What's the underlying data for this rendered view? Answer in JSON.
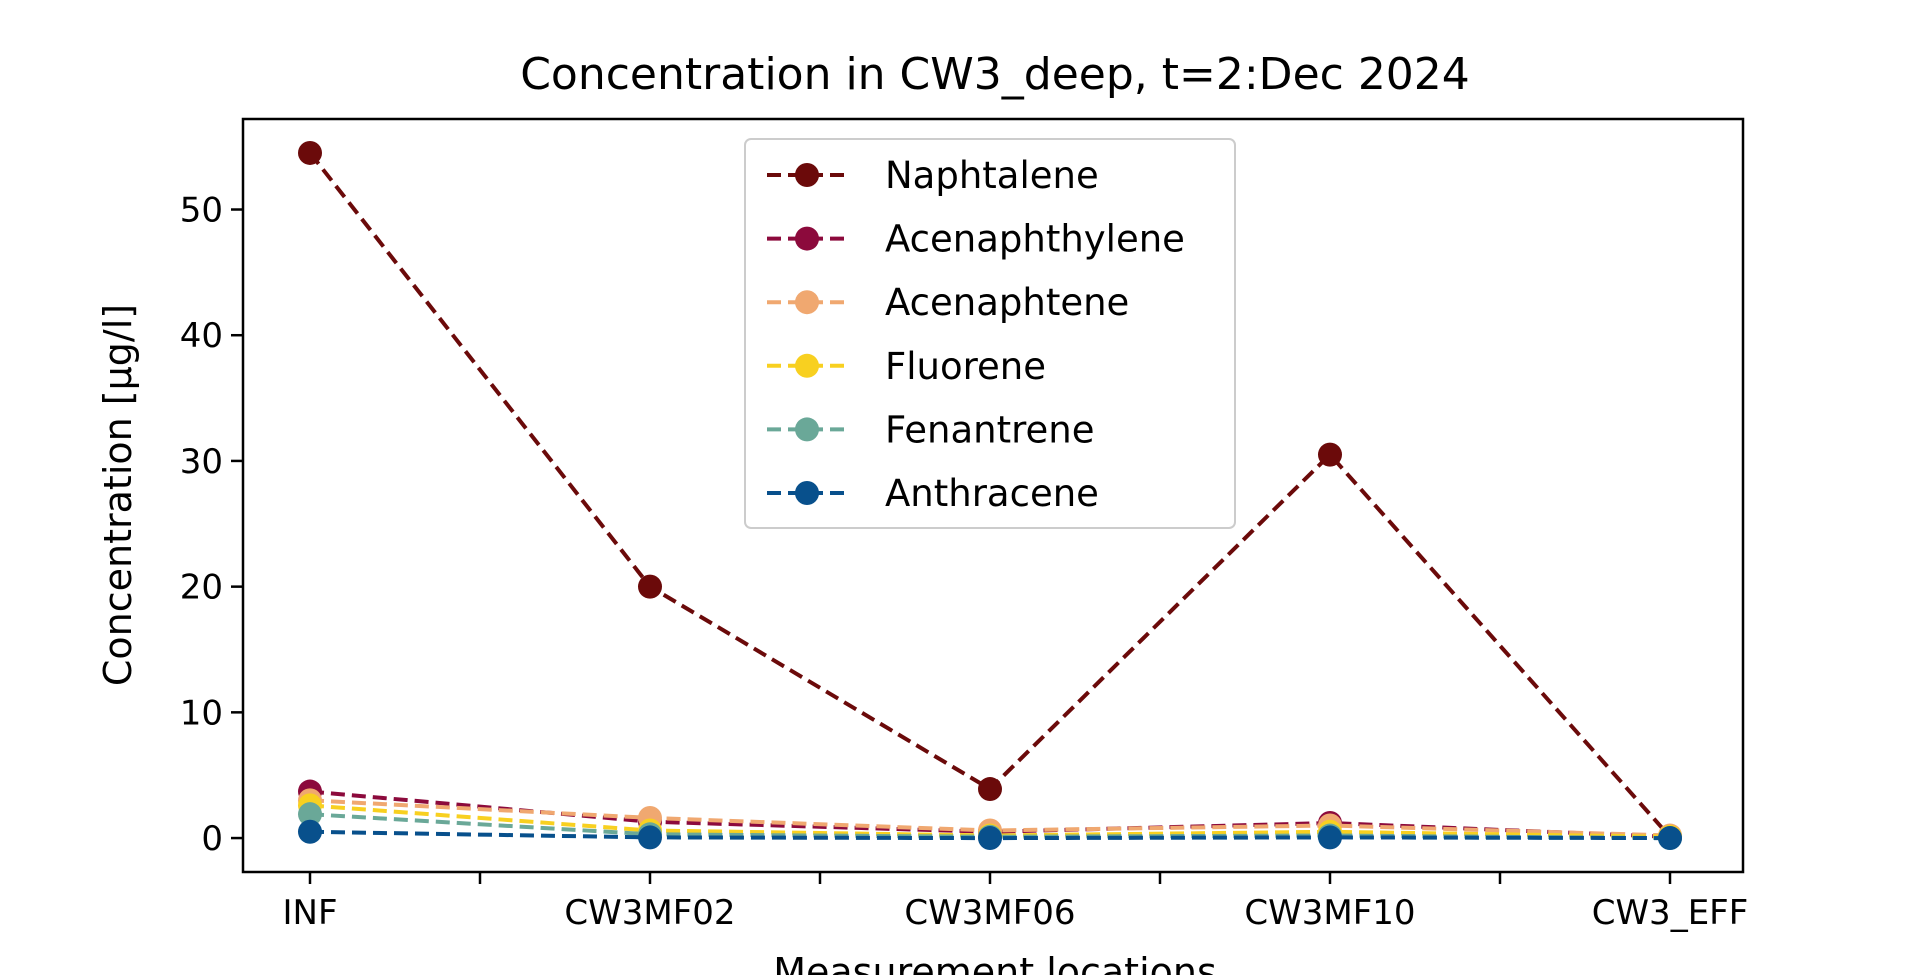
{
  "chart_data": {
    "type": "line",
    "title": "Concentration in CW3_deep, t=2:Dec 2024",
    "xlabel": "Measurement locations",
    "ylabel": "Concentration [µg/l]",
    "categories": [
      "INF",
      "CW3MF02",
      "CW3MF06",
      "CW3MF10",
      "CW3_EFF"
    ],
    "ylim": [
      -2.7,
      57.2
    ],
    "yticks": [
      0,
      10,
      20,
      30,
      40,
      50
    ],
    "grid": false,
    "legend_position": "top-center",
    "line_style": "dashed",
    "marker": "circle",
    "series": [
      {
        "name": "Naphtalene",
        "color": "#6b0a0a",
        "values": [
          54.5,
          20.0,
          3.9,
          30.5,
          0.1
        ]
      },
      {
        "name": "Acenaphthylene",
        "color": "#8c0a3c",
        "values": [
          3.7,
          1.3,
          0.5,
          1.2,
          0.1
        ]
      },
      {
        "name": "Acenaphtene",
        "color": "#f0a870",
        "values": [
          3.0,
          1.6,
          0.6,
          1.0,
          0.2
        ]
      },
      {
        "name": "Fluorene",
        "color": "#f8d020",
        "values": [
          2.6,
          0.6,
          0.2,
          0.5,
          0.1
        ]
      },
      {
        "name": "Fenantrene",
        "color": "#6aa898",
        "values": [
          1.9,
          0.3,
          0.1,
          0.2,
          0.0
        ]
      },
      {
        "name": "Anthracene",
        "color": "#08508c",
        "values": [
          0.5,
          0.05,
          0.0,
          0.05,
          0.0
        ]
      }
    ]
  }
}
